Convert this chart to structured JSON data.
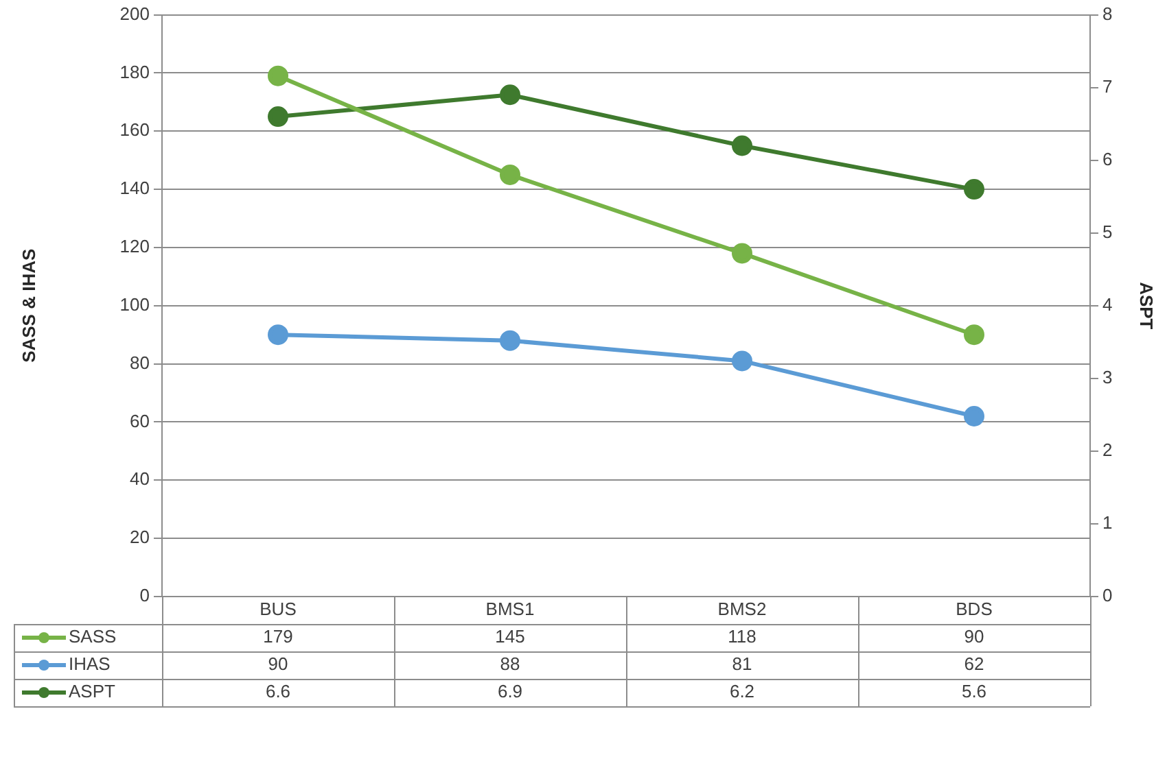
{
  "chart_data": {
    "type": "line",
    "categories": [
      "BUS",
      "BMS1",
      "BMS2",
      "BDS"
    ],
    "series": [
      {
        "name": "SASS",
        "color": "#77b347",
        "values": [
          179,
          145,
          118,
          90
        ]
      },
      {
        "name": "IHAS",
        "color": "#5b9bd5",
        "values": [
          90,
          88,
          81,
          62
        ]
      },
      {
        "name": "ASPT",
        "color": "#3f7a2e",
        "values": [
          6.6,
          6.9,
          6.2,
          5.6
        ],
        "axis": "y2"
      }
    ],
    "ylabel": "SASS & IHAS",
    "y2label": "ASPT",
    "ylim": [
      0,
      200
    ],
    "yticks": [
      0,
      20,
      40,
      60,
      80,
      100,
      120,
      140,
      160,
      180,
      200
    ],
    "y2lim": [
      0,
      8
    ],
    "y2ticks": [
      0,
      1,
      2,
      3,
      4,
      5,
      6,
      7,
      8
    ],
    "grid": "y",
    "marker": "circle",
    "line_style": "solid",
    "legend": "bottom left",
    "data_labels": true
  }
}
